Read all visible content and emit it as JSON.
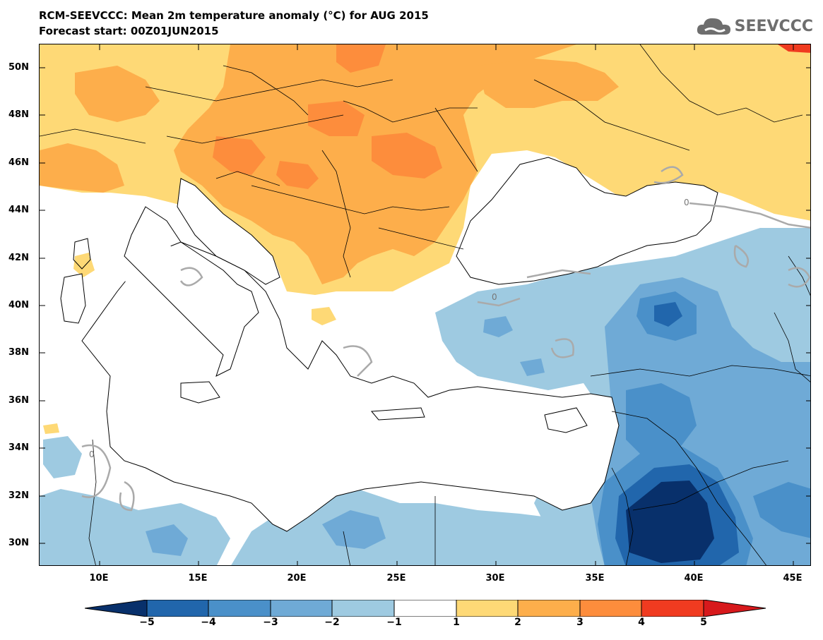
{
  "header": {
    "title": "RCM-SEEVCCC: Mean 2m temperature anomaly (°C) for AUG 2015",
    "subtitle": "Forecast start: 00Z01JUN2015",
    "logo_text": "SEEVCCC"
  },
  "map": {
    "lat_labels": [
      "50N",
      "48N",
      "46N",
      "44N",
      "42N",
      "40N",
      "38N",
      "36N",
      "34N",
      "32N",
      "30N"
    ],
    "lon_labels": [
      "10E",
      "15E",
      "20E",
      "25E",
      "30E",
      "35E",
      "40E",
      "45E"
    ],
    "contour_label": "0"
  },
  "colorbar": {
    "labels": [
      "-5",
      "-4",
      "-3",
      "-2",
      "-1",
      "1",
      "2",
      "3",
      "4",
      "5"
    ],
    "colors": {
      "lt_-5": "#08306b",
      "-5_-4": "#2166ac",
      "-4_-3": "#4a90c9",
      "-3_-2": "#6faad6",
      "-2_-1": "#9ecae1",
      "-1_1": "#ffffff",
      "1_2": "#fed976",
      "2_3": "#fdae4b",
      "3_4": "#fd8d3c",
      "4_5": "#f03b20",
      "gt_5": "#d7191c"
    }
  }
}
